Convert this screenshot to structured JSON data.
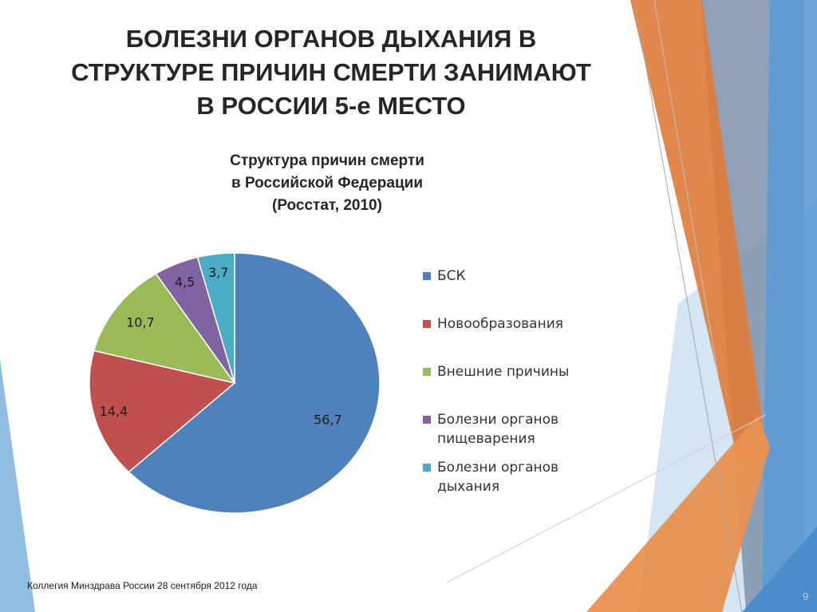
{
  "slide": {
    "title_lines": [
      "БОЛЕЗНИ ОРГАНОВ ДЫХАНИЯ  В",
      "СТРУКТУРЕ ПРИЧИН СМЕРТИ ЗАНИМАЮТ",
      "В РОССИИ 5-е МЕСТО"
    ],
    "footer": "Коллегия Минздрава России 28 сентября 2012 года",
    "page_number": "9"
  },
  "chart_data": {
    "type": "pie",
    "title_lines": [
      "Структура причин смерти",
      "в Российской Федерации",
      "(Росстат, 2010)"
    ],
    "slices": [
      {
        "name": "БСК",
        "value": 56.7,
        "label": "56,7",
        "color": "#4F81BD"
      },
      {
        "name": "Новообразования",
        "value": 14.4,
        "label": "14,4",
        "color": "#C0504D"
      },
      {
        "name": "Внешние причины",
        "value": 10.7,
        "label": "10,7",
        "color": "#9BBB59"
      },
      {
        "name": "Болезни органов пищеварения",
        "value": 4.5,
        "label": "4,5",
        "color": "#8064A2"
      },
      {
        "name": "Болезни органов дыхания",
        "value": 3.7,
        "label": "3,7",
        "color": "#4BACC6"
      }
    ],
    "legend_lines": [
      [
        "БСК"
      ],
      [
        "Новообразования"
      ],
      [
        "Внешние причины"
      ],
      [
        "Болезни органов",
        "пищеварения"
      ],
      [
        "Болезни органов",
        "дыхания"
      ]
    ],
    "legend_position": "right",
    "start_angle": "top",
    "direction": "clockwise"
  },
  "colors": {
    "text": "#262626",
    "accent_orange": "#E07B39",
    "accent_blue": "#5B9BD5",
    "accent_gray": "#8497B0"
  }
}
